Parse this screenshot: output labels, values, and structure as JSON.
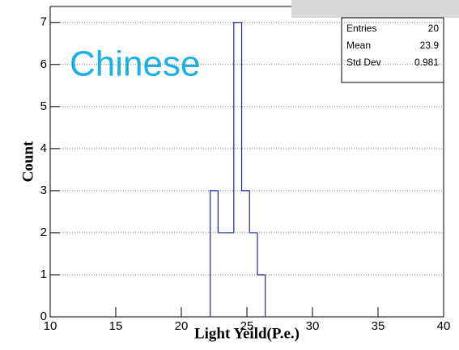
{
  "chart_data": {
    "type": "histogram",
    "xlabel": "Light Yeild(P.e.)",
    "ylabel": "Count",
    "annotation": "Chinese",
    "bins": [
      22.2,
      22.8,
      23.4,
      24.0,
      24.6,
      25.2,
      25.8,
      26.4
    ],
    "values": [
      3,
      2,
      2,
      7,
      3,
      2,
      1
    ],
    "color": "#1f24a8",
    "xlim": [
      10,
      40
    ],
    "xticks": [
      10,
      15,
      20,
      25,
      30,
      35,
      40
    ],
    "ylim": [
      0,
      7.38
    ],
    "yticks": [
      0,
      1,
      2,
      3,
      4,
      5,
      6,
      7
    ],
    "grid": true
  },
  "stats": {
    "rows": [
      [
        "Entries",
        "20"
      ],
      [
        "Mean",
        "23.9"
      ],
      [
        "Std Dev",
        "0.981"
      ]
    ]
  }
}
